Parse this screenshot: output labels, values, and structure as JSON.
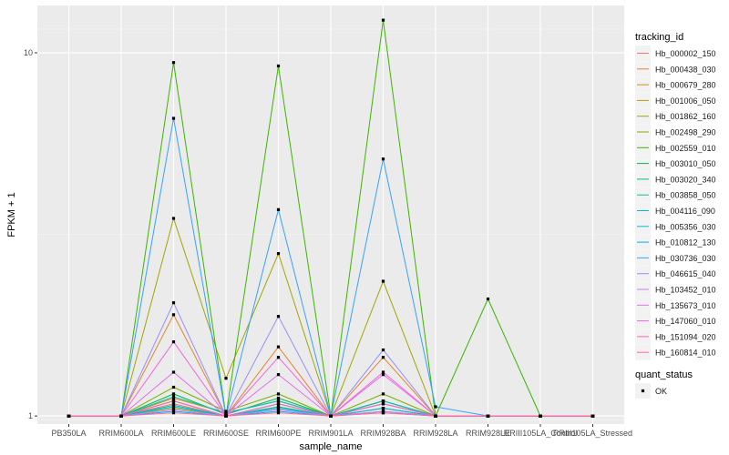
{
  "chart_data": {
    "type": "line",
    "title": "",
    "xlabel": "sample_name",
    "ylabel": "FPKM + 1",
    "y_scale": "log10",
    "ylim": [
      0.95,
      13.5
    ],
    "yticks": [
      {
        "value": 1,
        "label": "1"
      },
      {
        "value": 10,
        "label": "10"
      }
    ],
    "categories": [
      "PB350LA",
      "RRIM600LA",
      "RRIM600LE",
      "RRIM600SE",
      "RRIM600PE",
      "RRIM901LA",
      "RRIM928BA",
      "RRIM928LA",
      "RRIM928LE",
      "RRIII105LA_Control",
      "RRIII105LA_Stressed"
    ],
    "legend": {
      "title": "tracking_id",
      "placement": "right"
    },
    "point_legend": {
      "title": "quant_status",
      "items": [
        {
          "label": "OK",
          "shape": "square",
          "color": "#000000"
        }
      ]
    },
    "series": [
      {
        "name": "Hb_000002_150",
        "color": "#F8766D",
        "values": [
          1,
          1,
          1.08,
          1.0,
          1.06,
          1,
          1.05,
          1,
          1,
          1,
          1
        ]
      },
      {
        "name": "Hb_000438_030",
        "color": "#EA8331",
        "values": [
          1,
          1,
          1.9,
          1.0,
          1.55,
          1,
          1.45,
          1,
          1,
          1,
          1
        ]
      },
      {
        "name": "Hb_000679_280",
        "color": "#D89000",
        "values": [
          1,
          1,
          1.12,
          1.02,
          1.1,
          1,
          1.1,
          1,
          1,
          1,
          1
        ]
      },
      {
        "name": "Hb_001006_050",
        "color": "#C09B00",
        "values": [
          1,
          1,
          1.05,
          1.0,
          1.05,
          1,
          1.03,
          1,
          1,
          1,
          1
        ]
      },
      {
        "name": "Hb_001862_160",
        "color": "#A3A500",
        "values": [
          1,
          1,
          3.5,
          1.27,
          2.8,
          1,
          2.35,
          1,
          1,
          1,
          1
        ]
      },
      {
        "name": "Hb_002498_290",
        "color": "#7CAE00",
        "values": [
          1,
          1,
          1.2,
          1.03,
          1.15,
          1,
          1.15,
          1,
          1,
          1,
          1
        ]
      },
      {
        "name": "Hb_002559_010",
        "color": "#39B600",
        "values": [
          1,
          1,
          9.4,
          1.0,
          9.2,
          1,
          12.3,
          1,
          2.1,
          1,
          1
        ]
      },
      {
        "name": "Hb_003010_050",
        "color": "#00BB4E",
        "values": [
          1,
          1,
          1.15,
          1.01,
          1.12,
          1,
          1.1,
          1,
          1,
          1,
          1
        ]
      },
      {
        "name": "Hb_003020_340",
        "color": "#00BF7D",
        "values": [
          1,
          1,
          1.1,
          1.0,
          1.08,
          1,
          1.08,
          1,
          1,
          1,
          1
        ]
      },
      {
        "name": "Hb_003858_050",
        "color": "#00C1A3",
        "values": [
          1,
          1,
          1.07,
          1.0,
          1.06,
          1,
          1.05,
          1,
          1,
          1,
          1
        ]
      },
      {
        "name": "Hb_004116_090",
        "color": "#00BFC4",
        "values": [
          1,
          1,
          1.13,
          1.02,
          1.1,
          1,
          1.1,
          1,
          1,
          1,
          1
        ]
      },
      {
        "name": "Hb_005356_030",
        "color": "#00BAE0",
        "values": [
          1,
          1,
          1.06,
          1.0,
          1.05,
          1,
          1.05,
          1,
          1,
          1,
          1
        ]
      },
      {
        "name": "Hb_010812_130",
        "color": "#00B0F6",
        "values": [
          1,
          1,
          1.03,
          1.0,
          1.03,
          1,
          1.02,
          1,
          1,
          1,
          1
        ]
      },
      {
        "name": "Hb_030736_030",
        "color": "#35A2FF",
        "values": [
          1,
          1,
          6.6,
          1.0,
          3.7,
          1,
          5.1,
          1.06,
          1,
          1,
          1
        ]
      },
      {
        "name": "Hb_046615_040",
        "color": "#9590FF",
        "values": [
          1,
          1,
          2.05,
          1.0,
          1.88,
          1,
          1.52,
          1,
          1,
          1,
          1
        ]
      },
      {
        "name": "Hb_103452_010",
        "color": "#C77CFF",
        "values": [
          1,
          1,
          1.04,
          1.0,
          1.04,
          1,
          1.03,
          1,
          1,
          1,
          1
        ]
      },
      {
        "name": "Hb_135673_010",
        "color": "#E76BF3",
        "values": [
          1,
          1,
          1.32,
          1.0,
          1.3,
          1,
          1.3,
          1,
          1,
          1,
          1
        ]
      },
      {
        "name": "Hb_147060_010",
        "color": "#FA62DB",
        "values": [
          1,
          1,
          1.6,
          1.0,
          1.45,
          1,
          1.32,
          1,
          1,
          1,
          1
        ]
      },
      {
        "name": "Hb_151094_020",
        "color": "#FF62BC",
        "values": [
          1,
          1,
          1.1,
          1.0,
          1.08,
          1,
          1.08,
          1,
          1,
          1,
          1
        ]
      },
      {
        "name": "Hb_160814_010",
        "color": "#FF6C91",
        "values": [
          1,
          1,
          1.02,
          1.0,
          1.02,
          1,
          1.02,
          1,
          1,
          1,
          1
        ]
      }
    ]
  }
}
